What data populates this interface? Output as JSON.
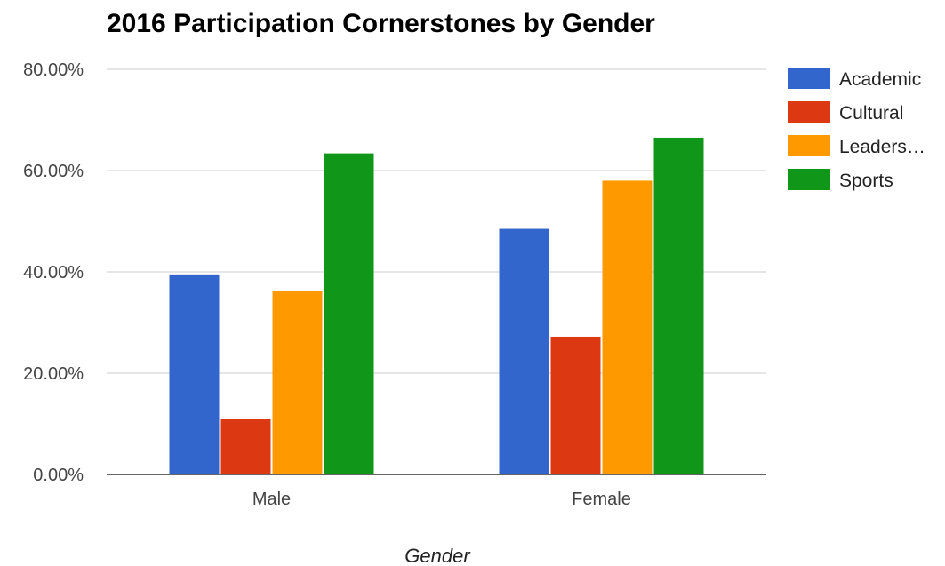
{
  "chart_data": {
    "type": "bar",
    "title": "2016 Participation Cornerstones by Gender",
    "xlabel": "Gender",
    "ylabel": "",
    "categories": [
      "Male",
      "Female"
    ],
    "ylim": [
      0,
      80
    ],
    "yticks": [
      0,
      20,
      40,
      60,
      80
    ],
    "ytick_labels": [
      "0.00%",
      "20.00%",
      "40.00%",
      "60.00%",
      "80.00%"
    ],
    "grid": true,
    "legend_position": "right",
    "series": [
      {
        "name": "Academic",
        "legend_label": "Academic",
        "color": "#3366cc",
        "values": [
          39.5,
          48.5
        ]
      },
      {
        "name": "Cultural",
        "legend_label": "Cultural",
        "color": "#dc3912",
        "values": [
          11,
          27.2
        ]
      },
      {
        "name": "Leadership",
        "legend_label": "Leaders…",
        "color": "#ff9900",
        "values": [
          36.3,
          58
        ]
      },
      {
        "name": "Sports",
        "legend_label": "Sports",
        "color": "#109618",
        "values": [
          63.4,
          66.5
        ]
      }
    ]
  }
}
